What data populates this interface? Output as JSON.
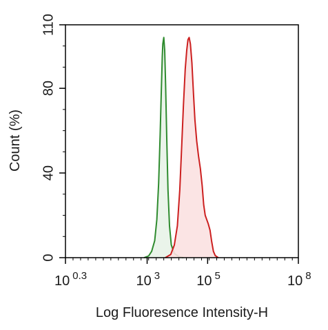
{
  "chart_data": {
    "type": "area",
    "title": "",
    "xlabel": "Log Fluoresence Intensity-H",
    "ylabel": "Count  (%)",
    "x_scale": "log10",
    "xlim": [
      0.3,
      8
    ],
    "ylim": [
      0,
      110
    ],
    "x_ticks": [
      {
        "base": "10",
        "exp": "0.3",
        "value": 0.3
      },
      {
        "base": "10",
        "exp": "3",
        "value": 3
      },
      {
        "base": "10",
        "exp": "5",
        "value": 5
      },
      {
        "base": "10",
        "exp": "8",
        "value": 8
      }
    ],
    "y_ticks": [
      "0",
      "40",
      "80",
      "110"
    ],
    "grid": false,
    "legend": "none",
    "series": [
      {
        "color": "#2e8b2e",
        "fill": "#e8f3e8",
        "points": [
          [
            2.9,
            0
          ],
          [
            3.05,
            0.8
          ],
          [
            3.15,
            3
          ],
          [
            3.25,
            8
          ],
          [
            3.32,
            18
          ],
          [
            3.38,
            35
          ],
          [
            3.43,
            58
          ],
          [
            3.47,
            80
          ],
          [
            3.5,
            95
          ],
          [
            3.52,
            101
          ],
          [
            3.55,
            104
          ],
          [
            3.58,
            98
          ],
          [
            3.61,
            82
          ],
          [
            3.65,
            55
          ],
          [
            3.69,
            32
          ],
          [
            3.74,
            15
          ],
          [
            3.8,
            6
          ],
          [
            3.9,
            2
          ],
          [
            4.05,
            0.5
          ],
          [
            4.2,
            0
          ]
        ]
      },
      {
        "color": "#cc1f1f",
        "fill": "#fbe1e1",
        "points": [
          [
            3.6,
            0
          ],
          [
            3.78,
            1.5
          ],
          [
            3.9,
            6
          ],
          [
            4.0,
            15
          ],
          [
            4.08,
            32
          ],
          [
            4.14,
            52
          ],
          [
            4.2,
            72
          ],
          [
            4.26,
            89
          ],
          [
            4.31,
            98
          ],
          [
            4.35,
            103
          ],
          [
            4.39,
            104
          ],
          [
            4.43,
            101
          ],
          [
            4.48,
            92
          ],
          [
            4.53,
            78
          ],
          [
            4.58,
            65
          ],
          [
            4.64,
            55
          ],
          [
            4.7,
            48
          ],
          [
            4.76,
            42
          ],
          [
            4.82,
            34
          ],
          [
            4.87,
            25
          ],
          [
            4.92,
            20
          ],
          [
            4.97,
            18
          ],
          [
            5.02,
            16
          ],
          [
            5.08,
            13
          ],
          [
            5.13,
            8
          ],
          [
            5.19,
            3
          ],
          [
            5.25,
            1
          ],
          [
            5.35,
            0
          ]
        ]
      }
    ]
  }
}
